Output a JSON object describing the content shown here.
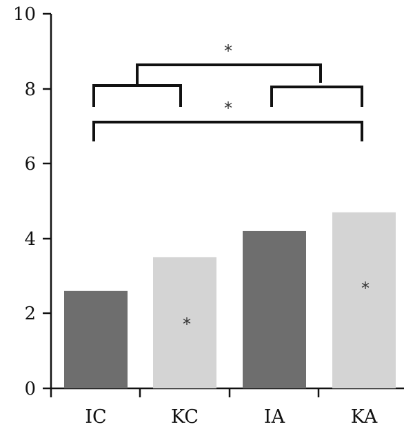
{
  "chart_data": {
    "type": "bar",
    "categories": [
      "IC",
      "KC",
      "IA",
      "KA"
    ],
    "values": [
      2.6,
      3.5,
      4.2,
      4.7
    ],
    "bar_colors": [
      "#6e6e6e",
      "#d4d4d4",
      "#6e6e6e",
      "#d4d4d4"
    ],
    "ylim": [
      0,
      10
    ],
    "yticks": [
      "0",
      "2",
      "4",
      "6",
      "8",
      "10"
    ],
    "title": "",
    "xlabel": "",
    "ylabel": "",
    "bar_annotations": [
      "",
      "*",
      "",
      "*"
    ],
    "significance_brackets": [
      {
        "groups": [
          "IC",
          "KC"
        ],
        "vs": [
          "IA",
          "KA"
        ],
        "label": "*"
      },
      {
        "groups": [
          "IC",
          "KA"
        ],
        "label": "*"
      }
    ],
    "grid": false,
    "legend": "none"
  }
}
